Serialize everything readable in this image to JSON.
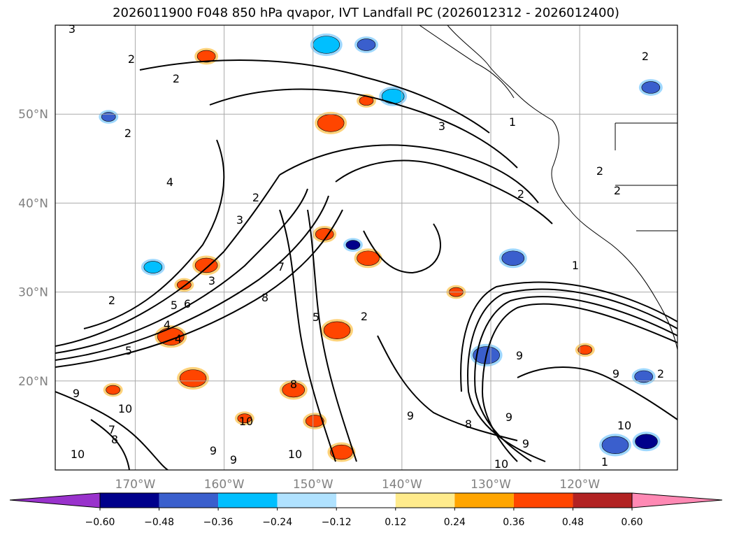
{
  "title": "2026011900 F048 850 hPa qvapor, IVT Landfall PC (2026012312 - 2026012400)",
  "map": {
    "lon_range": [
      -179,
      -109
    ],
    "lat_range": [
      10,
      60
    ],
    "lon_ticks": [
      -170,
      -160,
      -150,
      -140,
      -130,
      -120
    ],
    "lon_tick_labels": [
      "170°W",
      "160°W",
      "150°W",
      "140°W",
      "130°W",
      "120°W"
    ],
    "lat_ticks": [
      20,
      30,
      40,
      50
    ],
    "lat_tick_labels": [
      "20°N",
      "30°N",
      "40°N",
      "50°N"
    ],
    "grid": true,
    "contour_labels": [
      "3",
      "2",
      "2",
      "2",
      "2",
      "3",
      "1",
      "2",
      "2",
      "2",
      "2",
      "4",
      "2",
      "3",
      "7",
      "8",
      "5",
      "2",
      "5",
      "6",
      "4",
      "4",
      "5",
      "3",
      "1",
      "2",
      "9",
      "9",
      "9",
      "8",
      "9",
      "9",
      "10",
      "10",
      "10",
      "10",
      "9",
      "9",
      "8",
      "7",
      "8",
      "9",
      "10",
      "10",
      "1"
    ]
  },
  "colorbar": {
    "levels": [
      -0.6,
      -0.48,
      -0.36,
      -0.24,
      -0.12,
      0.12,
      0.24,
      0.36,
      0.48,
      0.6
    ],
    "tick_labels": [
      "−0.60",
      "−0.48",
      "−0.36",
      "−0.24",
      "−0.12",
      "0.12",
      "0.24",
      "0.36",
      "0.48",
      "0.60"
    ],
    "colors": [
      "#9932cc",
      "#00008b",
      "#3a5fcd",
      "#00bfff",
      "#b0e2ff",
      "#ffffff",
      "#ffeb8c",
      "#ffa500",
      "#ff4500",
      "#b22222",
      "#ff89b4"
    ],
    "extend": "both"
  },
  "chart_data": {
    "type": "heatmap",
    "title": "2026011900 F048 850 hPa qvapor, IVT Landfall PC (2026012312 - 2026012400)",
    "x_ticks": [
      "170°W",
      "160°W",
      "150°W",
      "140°W",
      "130°W",
      "120°W"
    ],
    "y_ticks": [
      "20°N",
      "30°N",
      "40°N",
      "50°N"
    ],
    "colorbar_levels": [
      -0.6,
      -0.48,
      -0.36,
      -0.24,
      -0.12,
      0.12,
      0.24,
      0.36,
      0.48,
      0.6
    ],
    "blobs": [
      {
        "lon": -145.5,
        "lat": 35.3,
        "value": -0.55
      },
      {
        "lon": -148.7,
        "lat": 36.5,
        "value": 0.45
      },
      {
        "lon": -143.8,
        "lat": 33.8,
        "value": 0.45
      },
      {
        "lon": -147.3,
        "lat": 25.7,
        "value": 0.45
      },
      {
        "lon": -133.9,
        "lat": 30.0,
        "value": 0.4
      },
      {
        "lon": -144.0,
        "lat": 57.8,
        "value": -0.4
      },
      {
        "lon": -141.0,
        "lat": 52.0,
        "value": -0.35
      },
      {
        "lon": -148.5,
        "lat": 57.8,
        "value": -0.35
      },
      {
        "lon": -173.0,
        "lat": 49.7,
        "value": -0.4
      },
      {
        "lon": -168.0,
        "lat": 32.8,
        "value": -0.35
      },
      {
        "lon": -162.0,
        "lat": 33.0,
        "value": 0.4
      },
      {
        "lon": -148.0,
        "lat": 49.0,
        "value": 0.45
      },
      {
        "lon": -144.0,
        "lat": 51.5,
        "value": 0.4
      },
      {
        "lon": -162.0,
        "lat": 56.5,
        "value": 0.45
      },
      {
        "lon": -127.5,
        "lat": 33.8,
        "value": -0.4
      },
      {
        "lon": -130.5,
        "lat": 22.9,
        "value": -0.45
      },
      {
        "lon": -119.4,
        "lat": 23.5,
        "value": 0.4
      },
      {
        "lon": -112.8,
        "lat": 20.5,
        "value": -0.45
      },
      {
        "lon": -112.5,
        "lat": 13.2,
        "value": -0.5
      },
      {
        "lon": -116.0,
        "lat": 12.8,
        "value": -0.45
      },
      {
        "lon": -157.7,
        "lat": 15.8,
        "value": 0.45
      },
      {
        "lon": -149.8,
        "lat": 15.5,
        "value": 0.45
      },
      {
        "lon": -146.8,
        "lat": 12.0,
        "value": 0.4
      },
      {
        "lon": -166.0,
        "lat": 25.0,
        "value": 0.4
      },
      {
        "lon": -164.5,
        "lat": 30.8,
        "value": 0.4
      },
      {
        "lon": -112.0,
        "lat": 53.0,
        "value": -0.4
      },
      {
        "lon": -152.2,
        "lat": 19.0,
        "value": 0.45
      },
      {
        "lon": -163.5,
        "lat": 20.3,
        "value": 0.4
      },
      {
        "lon": -172.5,
        "lat": 19.0,
        "value": 0.4
      }
    ]
  }
}
